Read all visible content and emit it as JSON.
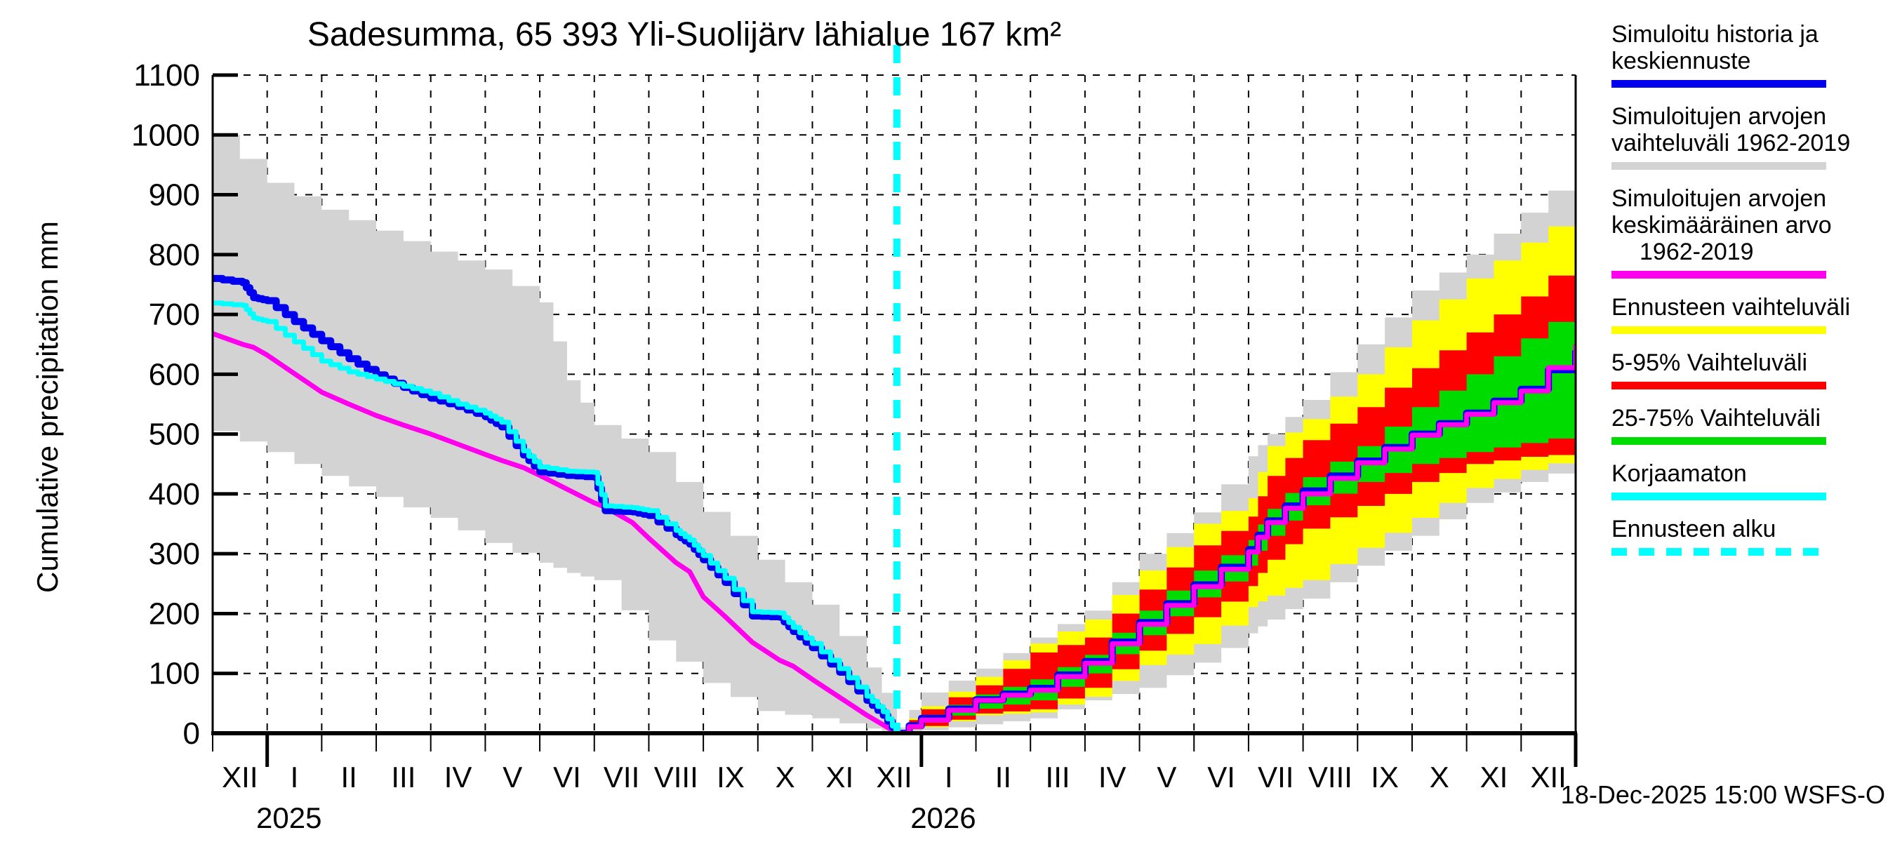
{
  "meta": {
    "footer_stamp": "18-Dec-2025 15:00 WSFS-O"
  },
  "legend": {
    "items": [
      {
        "lines": [
          "Simuloitu historia ja",
          "keskiennuste"
        ],
        "color": "#0000ee",
        "style": "line"
      },
      {
        "lines": [
          "Simuloitujen arvojen",
          "vaihteluväli 1962-2019"
        ],
        "color": "#d3d3d3",
        "style": "band"
      },
      {
        "lines": [
          "Simuloitujen arvojen",
          "keskimääräinen arvo",
          "1962-2019"
        ],
        "color": "#ff00ee",
        "style": "line"
      },
      {
        "lines": [
          "Ennusteen vaihteluväli"
        ],
        "color": "#ffff00",
        "style": "band"
      },
      {
        "lines": [
          "5-95% Vaihteluväli"
        ],
        "color": "#ff0000",
        "style": "band"
      },
      {
        "lines": [
          "25-75% Vaihteluväli"
        ],
        "color": "#00dc00",
        "style": "band"
      },
      {
        "lines": [
          "Korjaamaton"
        ],
        "color": "#00ffff",
        "style": "line"
      },
      {
        "lines": [
          "Ennusteen alku"
        ],
        "color": "#00ffff",
        "style": "dashed"
      }
    ]
  },
  "chart_data": {
    "type": "line",
    "title": "Sadesumma, 65 393 Yli-Suolijärv lähialue 167 km²",
    "ylabel": "Cumulative precipitation  mm",
    "ylim": [
      0,
      1100
    ],
    "yticks": [
      0,
      100,
      200,
      300,
      400,
      500,
      600,
      700,
      800,
      900,
      1000,
      1100
    ],
    "x_axis": {
      "month_labels": [
        "XII",
        "I",
        "II",
        "III",
        "IV",
        "V",
        "VI",
        "VII",
        "VIII",
        "IX",
        "X",
        "XI",
        "XII",
        "I",
        "II",
        "III",
        "IV",
        "V",
        "VI",
        "VII",
        "VIII",
        "IX",
        "X",
        "XI",
        "XII"
      ],
      "year_labels": [
        {
          "text": "2025",
          "month": 1.4
        },
        {
          "text": "2026",
          "month": 13.4
        }
      ],
      "months_total": 25
    },
    "forecast_start_month": 12.55,
    "grid": true,
    "legend_position": "right-outside",
    "bands": [
      {
        "name": "simulated-range-1962-2019-history",
        "color": "#d3d3d3",
        "x": [
          0,
          1,
          2,
          3,
          4,
          5,
          6,
          6.5,
          7,
          8,
          9,
          10,
          11,
          12,
          12.55
        ],
        "upper": [
          1000,
          920,
          875,
          840,
          805,
          775,
          720,
          590,
          515,
          470,
          370,
          290,
          215,
          110,
          25
        ],
        "lower": [
          505,
          470,
          430,
          395,
          360,
          318,
          285,
          268,
          256,
          155,
          84,
          37,
          25,
          8,
          0
        ]
      },
      {
        "name": "simulated-range-1962-2019-forecast",
        "color": "#d3d3d3",
        "x": [
          12.55,
          13,
          14,
          15,
          16,
          17,
          18,
          19,
          19.35,
          20,
          21,
          22,
          23,
          24,
          25
        ],
        "upper": [
          10,
          68,
          108,
          160,
          205,
          300,
          369,
          463,
          500,
          557,
          650,
          740,
          800,
          870,
          944
        ],
        "lower": [
          0,
          5,
          15,
          25,
          55,
          76,
          118,
          167,
          190,
          225,
          280,
          330,
          385,
          420,
          448
        ]
      },
      {
        "name": "forecast-full-range",
        "color": "#ffff00",
        "x": [
          12.55,
          13,
          14,
          15,
          16,
          17,
          18,
          19,
          19.35,
          20,
          21,
          22,
          23,
          24,
          25
        ],
        "upper": [
          5,
          45,
          94,
          150,
          190,
          272,
          350,
          393,
          480,
          525,
          600,
          690,
          760,
          820,
          874
        ],
        "lower": [
          2,
          10,
          30,
          35,
          61,
          114,
          149,
          211,
          230,
          256,
          310,
          360,
          410,
          440,
          462
        ]
      },
      {
        "name": "range-5-95",
        "color": "#ff0000",
        "x": [
          12.55,
          13,
          14,
          15,
          16,
          17,
          18,
          19,
          19.35,
          20,
          21,
          22,
          23,
          24,
          25
        ],
        "upper": [
          4,
          40,
          80,
          135,
          160,
          240,
          314,
          362,
          430,
          490,
          545,
          610,
          670,
          730,
          800
        ],
        "lower": [
          2,
          12,
          33,
          40,
          76,
          138,
          194,
          246,
          290,
          342,
          380,
          420,
          450,
          462,
          468
        ]
      },
      {
        "name": "range-25-75",
        "color": "#00dc00",
        "x": [
          12.55,
          13,
          14,
          15,
          16,
          17,
          18,
          19,
          19.35,
          20,
          21,
          22,
          23,
          24,
          25
        ],
        "upper": [
          3,
          30,
          65,
          90,
          131,
          205,
          272,
          323,
          375,
          428,
          480,
          545,
          600,
          660,
          715
        ],
        "lower": [
          2,
          18,
          41,
          55,
          100,
          164,
          227,
          280,
          330,
          381,
          420,
          450,
          470,
          485,
          500
        ]
      }
    ],
    "lines": [
      {
        "name": "longterm-mean-1962-2019-history",
        "color": "#ff00ee",
        "width": 7,
        "step": 0,
        "x": [
          0,
          0.55,
          0.75,
          1,
          1.5,
          2,
          2.5,
          3,
          3.5,
          4,
          4.5,
          5,
          5.3,
          5.7,
          6,
          6.5,
          7,
          7.2,
          7.7,
          8,
          8.5,
          8.75,
          9,
          9.4,
          9.9,
          10.4,
          10.65,
          11,
          11.5,
          12,
          12.3,
          12.55
        ],
        "y": [
          668,
          650,
          645,
          632,
          601,
          570,
          550,
          531,
          515,
          500,
          483,
          466,
          456,
          444,
          431,
          408,
          385,
          378,
          352,
          326,
          285,
          270,
          228,
          195,
          152,
          122,
          112,
          90,
          60,
          30,
          14,
          0
        ]
      },
      {
        "name": "simulated-history-mean",
        "color": "#0000ee",
        "width": 10,
        "step": 3,
        "x": [
          0,
          0.55,
          0.75,
          1,
          1.5,
          2,
          2.5,
          3,
          3.5,
          4,
          4.5,
          5,
          5.3,
          5.7,
          6,
          6.5,
          7,
          7.2,
          7.7,
          8,
          8.5,
          8.75,
          9,
          9.4,
          9.9,
          10.4,
          10.65,
          11,
          11.5,
          12,
          12.3,
          12.55
        ],
        "y": [
          760,
          753,
          728,
          723,
          688,
          656,
          626,
          599,
          578,
          560,
          546,
          529,
          512,
          465,
          437,
          431,
          428,
          372,
          370,
          364,
          332,
          316,
          290,
          252,
          196,
          194,
          170,
          143,
          102,
          55,
          30,
          0
        ]
      },
      {
        "name": "uncorrected",
        "color": "#00ffff",
        "width": 7,
        "step": 3,
        "x": [
          0,
          0.55,
          0.75,
          1,
          1.5,
          2,
          2.5,
          3,
          3.5,
          4,
          4.5,
          5,
          5.3,
          5.7,
          6,
          6.5,
          7,
          7.2,
          7.7,
          8,
          8.5,
          8.75,
          9,
          9.4,
          9.9,
          10.4,
          10.65,
          11,
          11.5,
          12,
          12.3,
          12.55
        ],
        "y": [
          719,
          715,
          694,
          688,
          654,
          622,
          604,
          592,
          580,
          568,
          550,
          535,
          520,
          472,
          445,
          438,
          436,
          380,
          377,
          372,
          339,
          323,
          297,
          259,
          203,
          201,
          177,
          150,
          108,
          62,
          36,
          0
        ]
      },
      {
        "name": "mean-forecast",
        "color": "#0000ee",
        "width": 10,
        "step": 2,
        "x": [
          12.55,
          13,
          14,
          15,
          16,
          17,
          18,
          19,
          19.35,
          20,
          21,
          22,
          23,
          24,
          25
        ],
        "y": [
          0,
          25,
          56,
          75,
          120,
          185,
          248,
          307,
          355,
          405,
          455,
          500,
          535,
          575,
          640
        ]
      },
      {
        "name": "longterm-mean-1962-2019-forecast",
        "color": "#ff00ee",
        "width": 7,
        "step": 2,
        "x": [
          12.55,
          13,
          14,
          15,
          16,
          17,
          18,
          19,
          19.35,
          20,
          21,
          22,
          23,
          24,
          25
        ],
        "y": [
          0,
          22,
          55,
          72,
          117,
          182,
          245,
          303,
          352,
          400,
          452,
          498,
          533,
          572,
          650
        ]
      }
    ]
  }
}
